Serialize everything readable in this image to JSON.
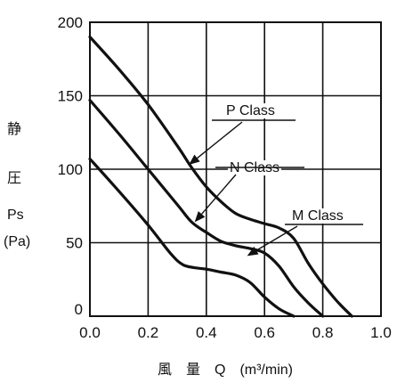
{
  "chart_data": {
    "type": "line",
    "xlabel": "風　量　Q　(m³/min)",
    "ylabel_lines": [
      "静",
      "圧",
      "Ps",
      "(Pa)"
    ],
    "xlim": [
      0,
      1.0
    ],
    "ylim": [
      0,
      200
    ],
    "x_ticks": [
      "0.0",
      "0.2",
      "0.4",
      "0.6",
      "0.8",
      "1.0"
    ],
    "y_ticks": [
      "0",
      "50",
      "100",
      "150",
      "200"
    ],
    "grid": true,
    "series": [
      {
        "name": "P Class",
        "x": [
          0.0,
          0.1,
          0.2,
          0.3,
          0.35,
          0.4,
          0.45,
          0.5,
          0.55,
          0.6,
          0.65,
          0.7,
          0.75,
          0.8,
          0.85,
          0.9
        ],
        "y": [
          190,
          168,
          144,
          116,
          101,
          88,
          78,
          70,
          66,
          63,
          60,
          53,
          36,
          22,
          10,
          0
        ]
      },
      {
        "name": "N Class",
        "x": [
          0.0,
          0.1,
          0.2,
          0.3,
          0.35,
          0.4,
          0.45,
          0.5,
          0.55,
          0.6,
          0.65,
          0.7,
          0.75,
          0.8
        ],
        "y": [
          147,
          124,
          100,
          76,
          64,
          57,
          51,
          48,
          46,
          43,
          34,
          20,
          9,
          0
        ]
      },
      {
        "name": "M Class",
        "x": [
          0.0,
          0.1,
          0.2,
          0.28,
          0.32,
          0.36,
          0.4,
          0.45,
          0.5,
          0.55,
          0.6,
          0.65,
          0.7
        ],
        "y": [
          107,
          85,
          62,
          42,
          35,
          33,
          32,
          30,
          28,
          23,
          13,
          5,
          0
        ]
      }
    ],
    "annotations": [
      {
        "label": "P Class",
        "series": "P Class",
        "arrow_to": [
          0.34,
          103
        ]
      },
      {
        "label": "N Class",
        "series": "N Class",
        "arrow_to": [
          0.36,
          64
        ]
      },
      {
        "label": "M Class",
        "series": "M Class",
        "arrow_to": [
          0.54,
          41
        ]
      }
    ]
  }
}
